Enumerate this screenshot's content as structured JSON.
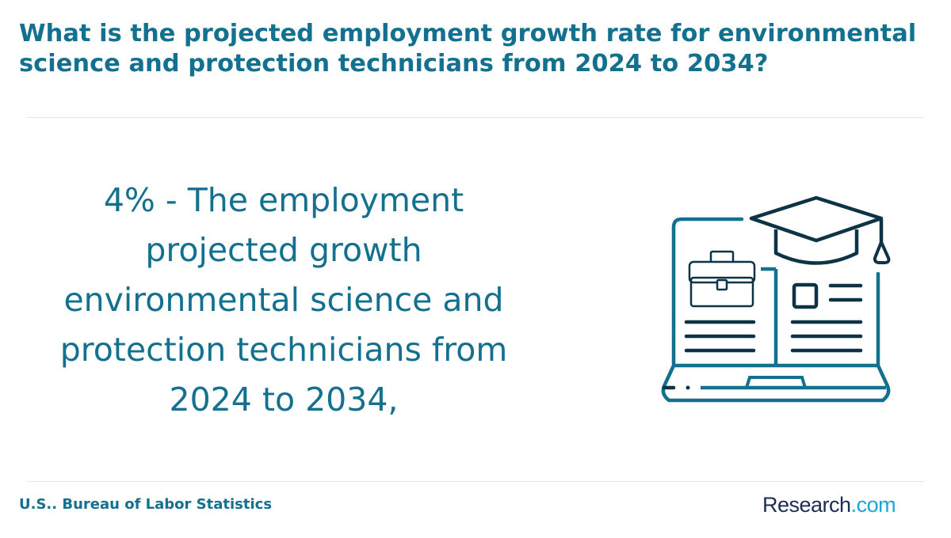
{
  "question": "What is the projected employment growth rate for environmental science and protection technicians from 2024 to 2034?",
  "answer": "4% - The employment projected growth environmental science and protection technicians from 2024 to 2034,",
  "source": "U.S.. Bureau of Labor Statistics",
  "brand": {
    "name_part1": "Research",
    "name_part2": ".com"
  },
  "colors": {
    "primary": "#13708f",
    "dark": "#0d3446",
    "brand_dark": "#1b2d52",
    "brand_accent": "#1aa7d8"
  },
  "icons": [
    "laptop-icon",
    "graduation-cap-icon",
    "briefcase-icon",
    "document-icon"
  ]
}
